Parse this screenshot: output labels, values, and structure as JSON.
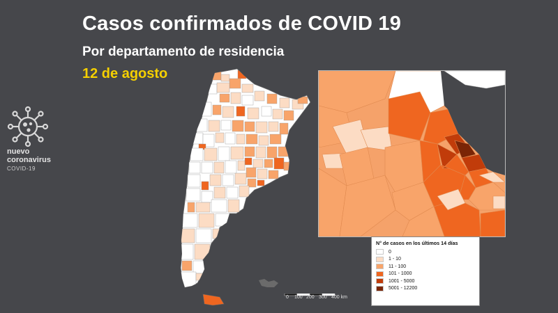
{
  "header": {
    "title": "Casos confirmados de COVID 19",
    "subtitle": "Por departamento de residencia",
    "date": "12 de agosto"
  },
  "logo": {
    "icon": "coronavirus-icon",
    "line1": "nuevo",
    "line2": "coronavirus",
    "line3": "COVID-19"
  },
  "legend": {
    "title": "N° de casos en los últimos 14 días",
    "items": [
      {
        "label": "0",
        "color": "#ffffff"
      },
      {
        "label": "1 - 10",
        "color": "#fcdcc4"
      },
      {
        "label": "11 - 100",
        "color": "#f8a46a"
      },
      {
        "label": "101 - 1000",
        "color": "#ef6620"
      },
      {
        "label": "1001 - 5000",
        "color": "#c13c0a"
      },
      {
        "label": "5001 - 12200",
        "color": "#7a2506"
      }
    ]
  },
  "scale": {
    "ticks": [
      "0",
      "100",
      "200",
      "300",
      "400 km"
    ]
  },
  "colors": {
    "background": "#46474b",
    "title": "#ffffff",
    "date": "#f5d000",
    "island": "#6b6b6b"
  }
}
